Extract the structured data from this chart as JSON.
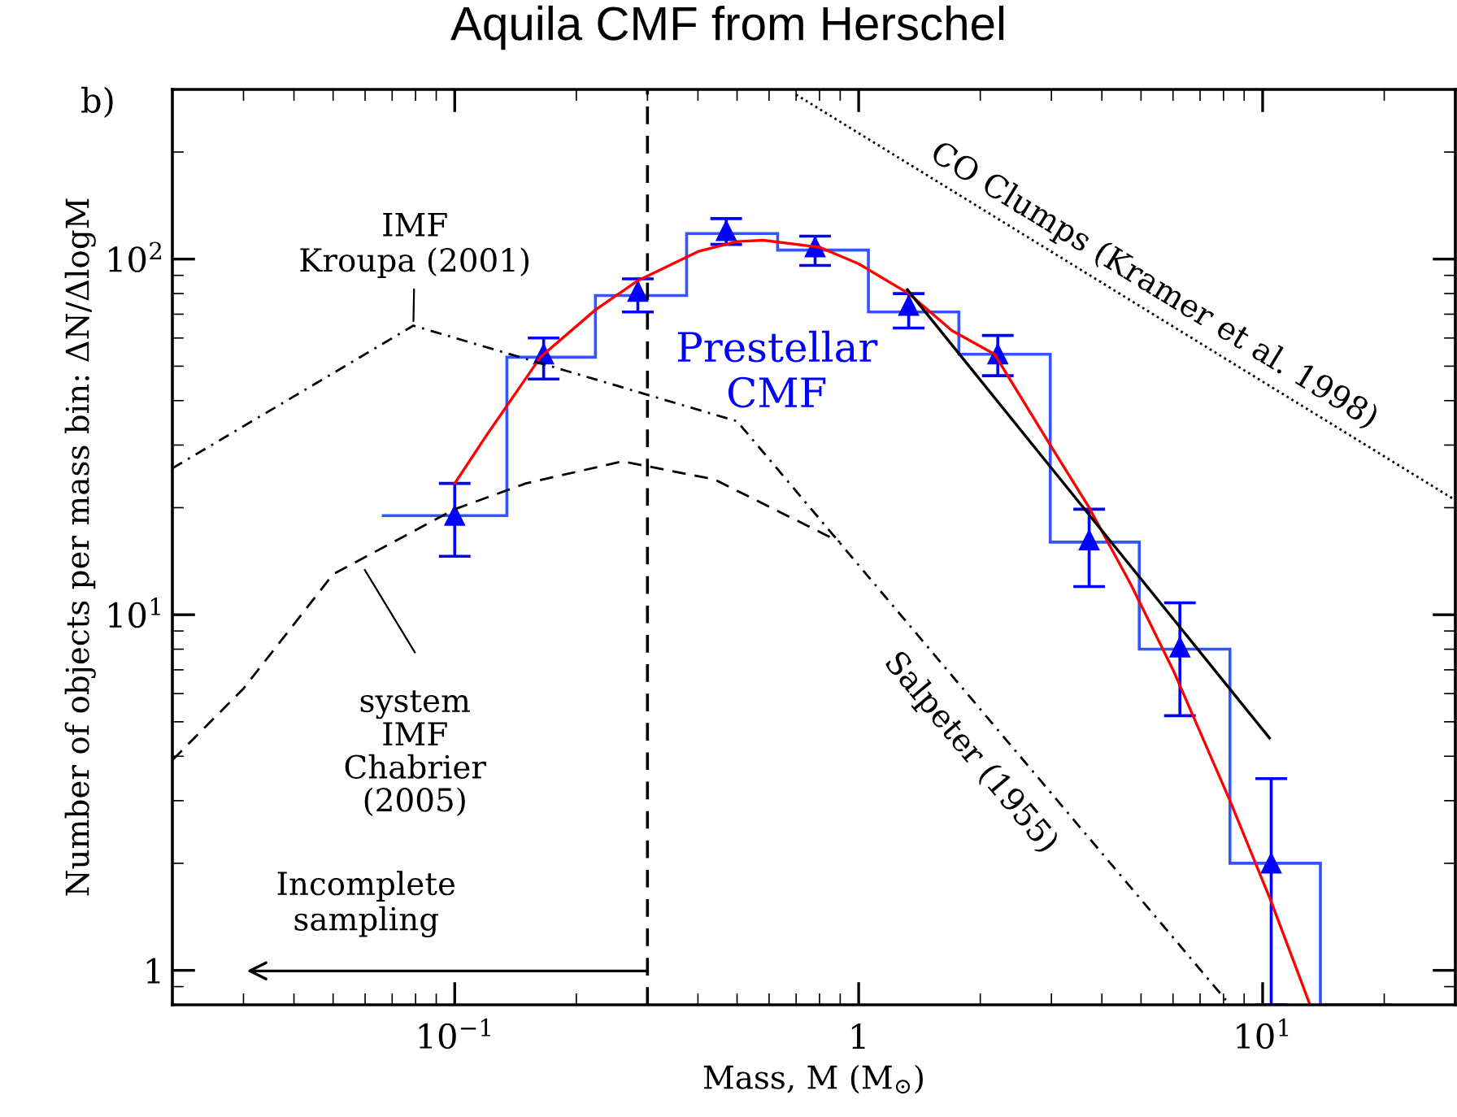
{
  "chart_data": {
    "type": "scatter",
    "title": "Aquila CMF from Herschel",
    "xlabel": "Mass, M (M$_{⊙}$)",
    "ylabel": "Number of objects per mass bin: ΔN/ΔlogM",
    "log": "xy",
    "xlim": [
      0.02,
      30
    ],
    "ylim": [
      0.8,
      300
    ],
    "xticks": [
      {
        "value": 0.1,
        "label": "10$^{−1}$"
      },
      1,
      {
        "value": 10,
        "label": "10$^{1}$"
      }
    ],
    "yticks": [
      1,
      {
        "value": 10,
        "label": "10$^{1}$"
      },
      {
        "value": 100,
        "label": "10$^{2}$"
      }
    ],
    "grid": false,
    "legend": false,
    "series": [
      {
        "type": "histogram",
        "color": "#3355ff",
        "bins": [
          0.066,
          0.1346,
          0.223,
          0.375,
          0.63,
          1.057,
          1.77,
          2.98,
          4.95,
          8.3,
          13.9,
          20.9
        ],
        "values": [
          19,
          53,
          79,
          118,
          106,
          71,
          54,
          16,
          8.0,
          2.0,
          0.8
        ]
      },
      {
        "color": "#0000ff",
        "marker": "triangle",
        "x": [
          0.1,
          0.166,
          0.284,
          0.47,
          0.78,
          1.33,
          2.21,
          3.72,
          6.24,
          10.5
        ],
        "values": [
          19,
          54,
          81,
          120,
          108,
          74,
          54,
          16.2,
          8.1,
          2.0
        ],
        "errors": [
          [
            14.6,
            23.4
          ],
          [
            46,
            60
          ],
          [
            71,
            88
          ],
          [
            110,
            130
          ],
          [
            96,
            116
          ],
          [
            64,
            80
          ],
          [
            47,
            61
          ],
          [
            12,
            19.8
          ],
          [
            5.2,
            10.8
          ],
          [
            0.8,
            3.46
          ]
        ]
      },
      {
        "type": "line",
        "color": "#ff0000",
        "line_style": "solid",
        "x": [
          0.1,
          0.12,
          0.163,
          0.223,
          0.284,
          0.4,
          0.5,
          0.58,
          0.8,
          1.0,
          1.33,
          1.7,
          2.17,
          2.98,
          3.72,
          4.73,
          6.0,
          8.3,
          10.5,
          13.1
        ],
        "values": [
          23.4,
          32,
          53,
          72,
          87,
          105,
          112,
          113,
          108,
          97,
          80,
          63,
          54,
          30,
          20,
          12.1,
          7.0,
          3.0,
          1.56,
          0.8
        ]
      },
      {
        "type": "line",
        "color": "#000000",
        "line_style": "solid",
        "x": [
          1.32,
          10.4
        ],
        "values": [
          82,
          4.5
        ]
      },
      {
        "type": "line",
        "color": "#000000",
        "line_style": "dashdot",
        "x": [
          0.02,
          0.079,
          0.5,
          8.3
        ],
        "values": [
          25.8,
          65,
          35,
          0.8
        ]
      },
      {
        "type": "line",
        "color": "#000000",
        "line_style": "dashed",
        "x": [
          0.02,
          0.03,
          0.05,
          0.1,
          0.15,
          0.26,
          0.44,
          0.9
        ],
        "values": [
          3.9,
          6.2,
          13,
          19.8,
          23.4,
          27,
          24,
          16
        ]
      },
      {
        "type": "line",
        "color": "#000000",
        "line_style": "dotted",
        "x": [
          0.7,
          30
        ],
        "values": [
          290,
          21
        ]
      }
    ],
    "ref_lines": [
      {
        "axis": "x",
        "value": 0.3,
        "line_style": "dashed",
        "color": "#000000"
      }
    ],
    "annotations": [
      "b)",
      {
        "text": "IMF\nKroupa (2001)",
        "x": 0.079,
        "y": 65
      },
      "system\nIMF\nChabrier\n(2005)",
      "Prestellar\nCMF",
      "CO Clumps (Kramer et al. 1998)",
      "Salpeter (1955)",
      "Incomplete\nsampling"
    ]
  }
}
